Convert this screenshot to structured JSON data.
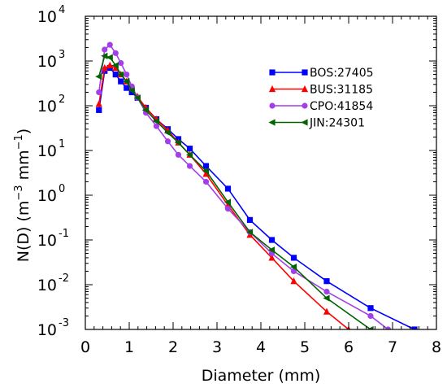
{
  "chart_data": {
    "type": "line",
    "title": "",
    "xlabel": "Diameter (mm)",
    "ylabel_base": "N(D)  (m",
    "ylabel_exp1": "−3",
    "ylabel_mid": " mm",
    "ylabel_exp2": "−1",
    "ylabel_end": ")",
    "xlim": [
      0,
      8
    ],
    "ylim_log10": [
      -3,
      4
    ],
    "log_y": true,
    "grid": false,
    "legend_position": "top-right",
    "x_ticks": [
      0,
      1,
      2,
      3,
      4,
      5,
      6,
      7,
      8
    ],
    "y_ticks": [
      {
        "base": "10",
        "exp": "-3",
        "log": -3
      },
      {
        "base": "10",
        "exp": "-2",
        "log": -2
      },
      {
        "base": "10",
        "exp": "-1",
        "log": -1
      },
      {
        "base": "10",
        "exp": "0",
        "log": 0
      },
      {
        "base": "10",
        "exp": "1",
        "log": 1
      },
      {
        "base": "10",
        "exp": "2",
        "log": 2
      },
      {
        "base": "10",
        "exp": "3",
        "log": 3
      },
      {
        "base": "10",
        "exp": "4",
        "log": 4
      }
    ],
    "series": [
      {
        "name": "BOS:27405",
        "color": "#0000ff",
        "marker": "square",
        "x": [
          0.31,
          0.44,
          0.56,
          0.69,
          0.81,
          0.94,
          1.06,
          1.19,
          1.38,
          1.62,
          1.88,
          2.12,
          2.38,
          2.75,
          3.25,
          3.75,
          4.25,
          4.75,
          5.5,
          6.5,
          7.5
        ],
        "y": [
          80,
          600,
          700,
          500,
          350,
          250,
          200,
          150,
          90,
          50,
          30,
          18,
          11,
          4.5,
          1.4,
          0.28,
          0.1,
          0.04,
          0.012,
          0.003,
          0.001
        ]
      },
      {
        "name": "BUS:31185",
        "color": "#ff0000",
        "marker": "triangle",
        "x": [
          0.31,
          0.44,
          0.56,
          0.69,
          0.81,
          0.94,
          1.06,
          1.19,
          1.38,
          1.62,
          1.88,
          2.12,
          2.38,
          2.75,
          3.25,
          3.75,
          4.25,
          4.75,
          5.5,
          6.0
        ],
        "y": [
          110,
          700,
          800,
          700,
          500,
          350,
          250,
          160,
          90,
          50,
          28,
          15,
          8,
          3,
          0.6,
          0.13,
          0.04,
          0.012,
          0.0025,
          0.001
        ]
      },
      {
        "name": "CPO:41854",
        "color": "#a33fea",
        "marker": "circle",
        "x": [
          0.31,
          0.44,
          0.56,
          0.69,
          0.81,
          0.94,
          1.06,
          1.19,
          1.38,
          1.62,
          1.88,
          2.12,
          2.38,
          2.75,
          3.25,
          3.75,
          4.25,
          4.75,
          5.5,
          6.5,
          6.9
        ],
        "y": [
          200,
          1800,
          2300,
          1500,
          900,
          500,
          270,
          150,
          70,
          35,
          16,
          8,
          4.5,
          2,
          0.5,
          0.15,
          0.05,
          0.02,
          0.007,
          0.002,
          0.001
        ]
      },
      {
        "name": "JIN:24301",
        "color": "#006400",
        "marker": "left-triangle",
        "x": [
          0.31,
          0.44,
          0.56,
          0.69,
          0.81,
          0.94,
          1.06,
          1.19,
          1.38,
          1.62,
          1.88,
          2.12,
          2.38,
          2.75,
          3.25,
          3.75,
          4.25,
          4.75,
          5.5,
          6.5
        ],
        "y": [
          450,
          1300,
          1200,
          800,
          500,
          350,
          220,
          150,
          80,
          45,
          25,
          15,
          8,
          3.5,
          0.7,
          0.15,
          0.06,
          0.025,
          0.005,
          0.001
        ]
      }
    ]
  }
}
